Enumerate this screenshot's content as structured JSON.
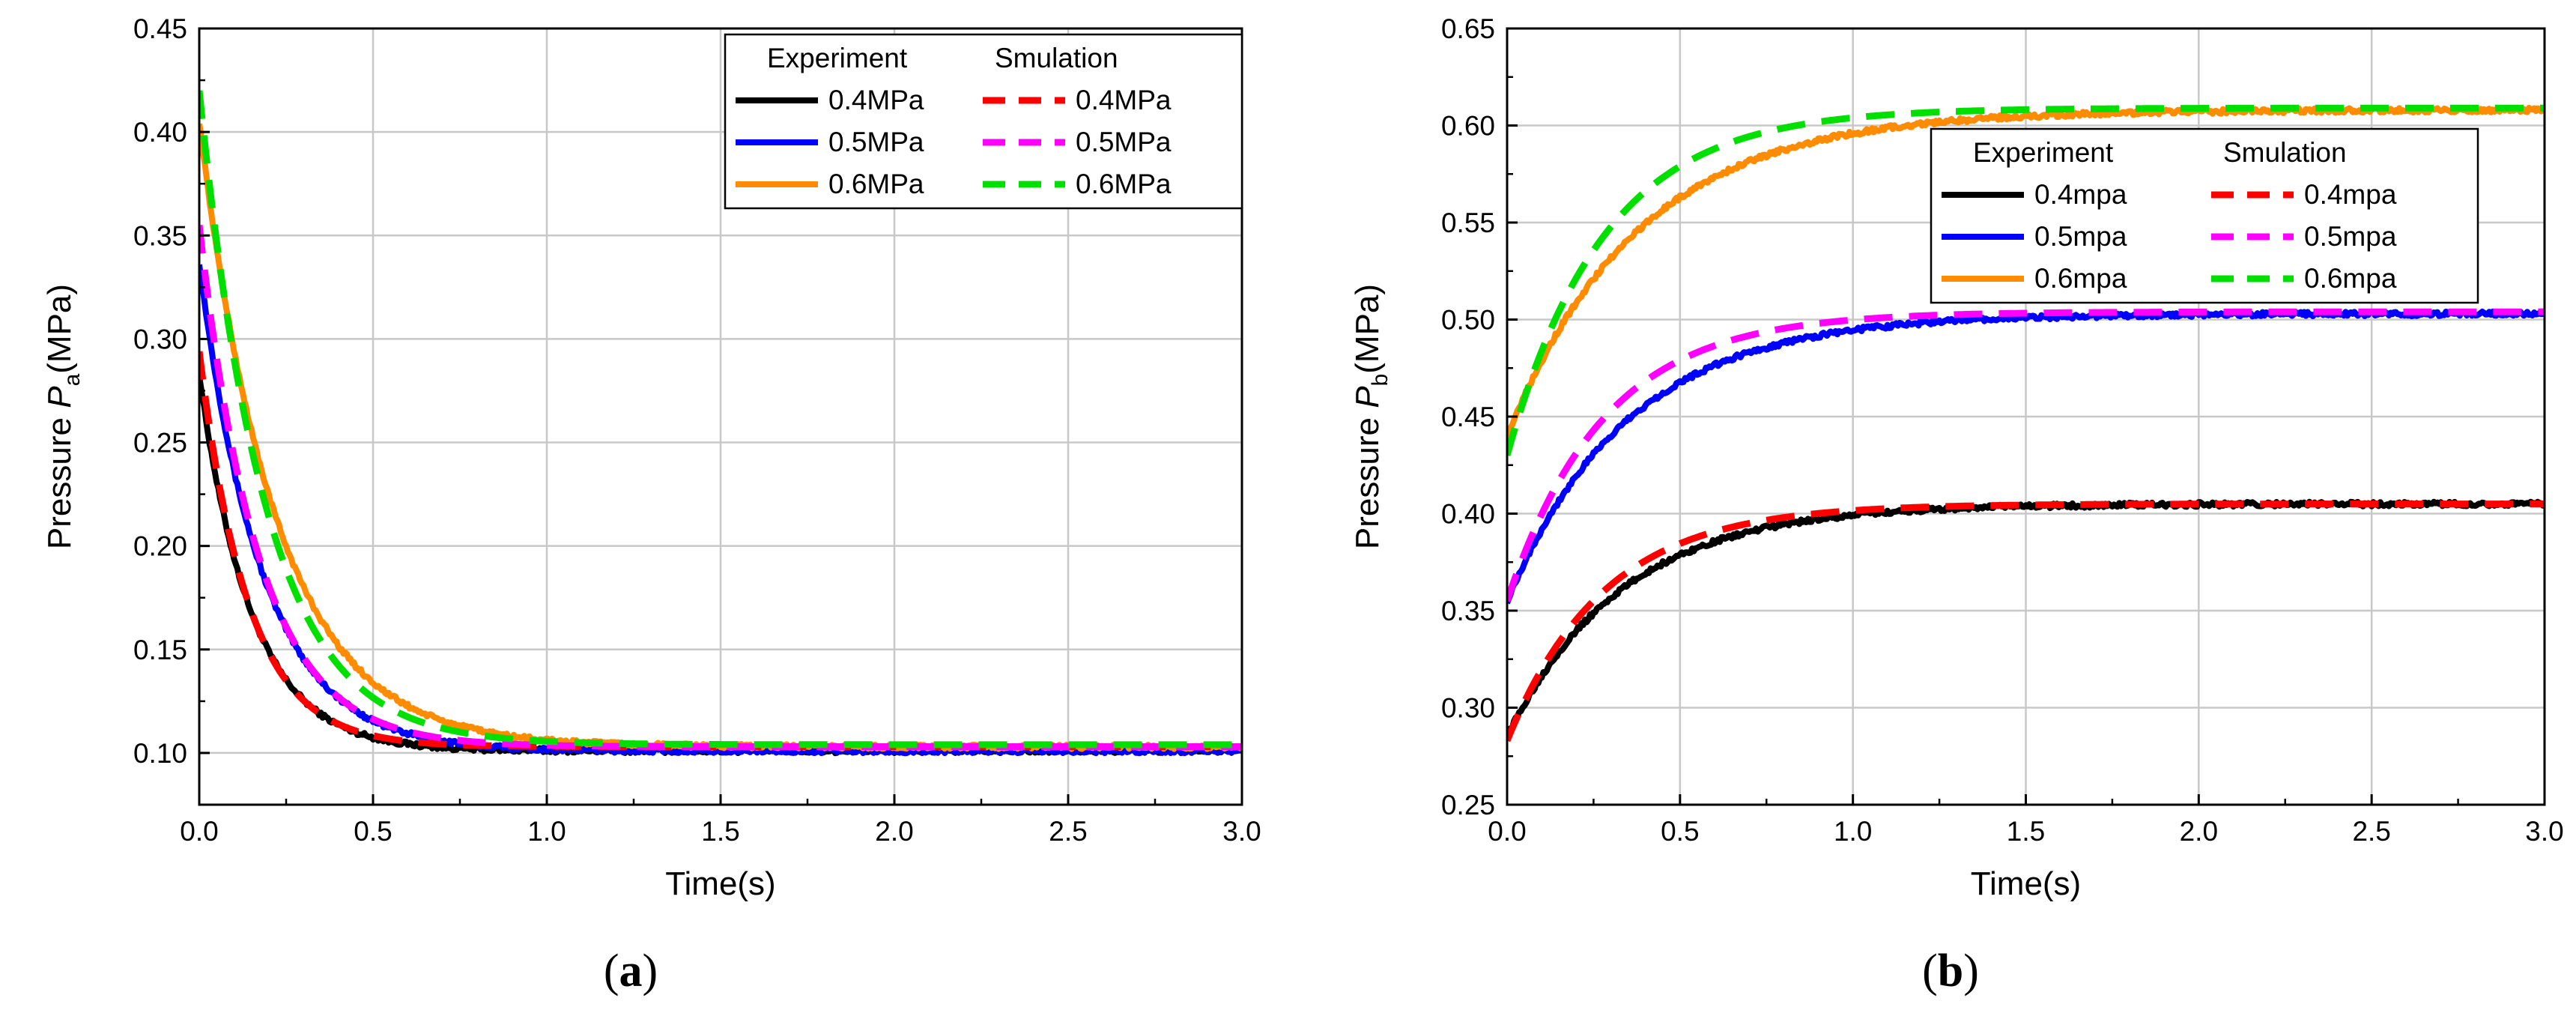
{
  "chart_data": [
    {
      "type": "line",
      "panel_label": "(a)",
      "panel_letter": "a",
      "xlabel": "Time(s)",
      "ylabel_prefix": "Pressure ",
      "ylabel_symbol": "P",
      "ylabel_sub": "a",
      "ylabel_unit": "(MPa)",
      "xlim": [
        0,
        3.0
      ],
      "ylim": [
        0.075,
        0.45
      ],
      "xticks": [
        "0.0",
        "0.5",
        "1.0",
        "1.5",
        "2.0",
        "2.5",
        "3.0"
      ],
      "yticks": [
        "0.10",
        "0.15",
        "0.20",
        "0.25",
        "0.30",
        "0.35",
        "0.40",
        "0.45"
      ],
      "grid": true,
      "legend_position": "top-right",
      "legend_headers": [
        "Experiment",
        "Smulation"
      ],
      "series": [
        {
          "name": "0.4MPa",
          "group": "Experiment",
          "color": "#000000",
          "style": "solid",
          "start": 0.283,
          "final": 0.101,
          "tau": 0.15,
          "noise": true
        },
        {
          "name": "0.5MPa",
          "group": "Experiment",
          "color": "#0000ff",
          "style": "solid",
          "start": 0.337,
          "final": 0.101,
          "tau": 0.18,
          "noise": true
        },
        {
          "name": "0.6MPa",
          "group": "Experiment",
          "color": "#ff8c00",
          "style": "solid",
          "start": 0.405,
          "final": 0.103,
          "tau": 0.22,
          "noise": true
        },
        {
          "name": "0.4MPa",
          "group": "Smulation",
          "color": "#ff0000",
          "style": "dashed",
          "start": 0.294,
          "final": 0.103,
          "tau": 0.14,
          "noise": false
        },
        {
          "name": "0.5MPa",
          "group": "Smulation",
          "color": "#ff00ff",
          "style": "dashed",
          "start": 0.355,
          "final": 0.103,
          "tau": 0.17,
          "noise": false
        },
        {
          "name": "0.6MPa",
          "group": "Smulation",
          "color": "#00e000",
          "style": "dashed",
          "start": 0.42,
          "final": 0.104,
          "tau": 0.19,
          "noise": false
        }
      ]
    },
    {
      "type": "line",
      "panel_label": "(b)",
      "panel_letter": "b",
      "xlabel": "Time(s)",
      "ylabel_prefix": "Pressure ",
      "ylabel_symbol": "P",
      "ylabel_sub": "b",
      "ylabel_unit": "(MPa)",
      "xlim": [
        0,
        3.0
      ],
      "ylim": [
        0.25,
        0.65
      ],
      "xticks": [
        "0.0",
        "0.5",
        "1.0",
        "1.5",
        "2.0",
        "2.5",
        "3.0"
      ],
      "yticks": [
        "0.25",
        "0.30",
        "0.35",
        "0.40",
        "0.45",
        "0.50",
        "0.55",
        "0.60",
        "0.65"
      ],
      "grid": true,
      "legend_position": "center-right",
      "legend_headers": [
        "Experiment",
        "Smulation"
      ],
      "series": [
        {
          "name": "0.4mpa",
          "group": "Experiment",
          "color": "#000000",
          "style": "solid",
          "start": 0.285,
          "final": 0.405,
          "tau": 0.33,
          "noise": true
        },
        {
          "name": "0.5mpa",
          "group": "Experiment",
          "color": "#0000ff",
          "style": "solid",
          "start": 0.355,
          "final": 0.503,
          "tau": 0.35,
          "noise": true
        },
        {
          "name": "0.6mpa",
          "group": "Experiment",
          "color": "#ff8c00",
          "style": "solid",
          "start": 0.44,
          "final": 0.608,
          "tau": 0.38,
          "noise": true
        },
        {
          "name": "0.4mpa",
          "group": "Smulation",
          "color": "#ff0000",
          "style": "dashed",
          "start": 0.283,
          "final": 0.405,
          "tau": 0.28,
          "noise": false
        },
        {
          "name": "0.5mpa",
          "group": "Smulation",
          "color": "#ff00ff",
          "style": "dashed",
          "start": 0.355,
          "final": 0.504,
          "tau": 0.28,
          "noise": false
        },
        {
          "name": "0.6mpa",
          "group": "Smulation",
          "color": "#00e000",
          "style": "dashed",
          "start": 0.43,
          "final": 0.609,
          "tau": 0.28,
          "noise": false
        }
      ]
    }
  ]
}
